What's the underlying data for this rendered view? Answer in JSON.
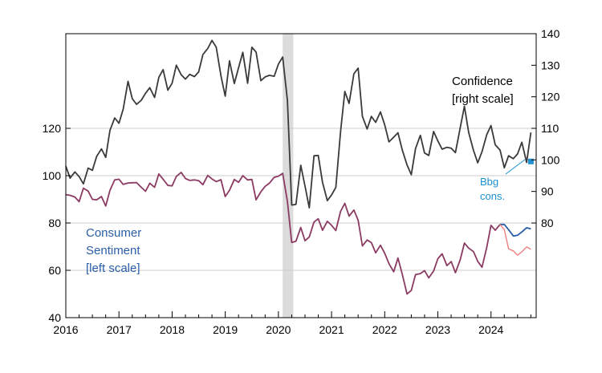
{
  "chart_data": {
    "type": "line",
    "x_ticks": [
      "2016",
      "2017",
      "2018",
      "2019",
      "2020",
      "2021",
      "2022",
      "2023",
      "2024"
    ],
    "x_range": [
      2016.0,
      2024.85
    ],
    "left_axis": {
      "range": [
        40,
        160
      ],
      "ticks": [
        "40",
        "60",
        "80",
        "100",
        "120"
      ]
    },
    "right_axis": {
      "range": [
        50,
        140
      ],
      "ticks": [
        "80",
        "90",
        "100",
        "110",
        "120",
        "130",
        "140"
      ]
    },
    "recession_shade": [
      2020.08,
      2020.28
    ],
    "grid": "horizontal",
    "annotations": {
      "confidence_line1": "Confidence",
      "confidence_line2": "[right scale]",
      "sentiment_line1": "Consumer",
      "sentiment_line2": "Sentiment",
      "sentiment_line3": "[left scale]",
      "bbg_line1": "Bbg",
      "bbg_line2": "cons."
    },
    "colors": {
      "confidence": "#3a3a3a",
      "sentiment_final": "#8b3a62",
      "sentiment_revised": "#2a5ea8",
      "sentiment_prelim": "#f08080",
      "bbg_consensus": "#1e8fd0",
      "recession": "#dcdcdc",
      "gridline": "#cccccc",
      "sentiment_label": "#2a5ea8",
      "bbg_label": "#1e8fd0"
    },
    "series": [
      {
        "axis": "right",
        "x": [
          2016.0,
          2016.08,
          2016.17,
          2016.25,
          2016.33,
          2016.42,
          2016.5,
          2016.58,
          2016.67,
          2016.75,
          2016.83,
          2016.92,
          2017.0,
          2017.08,
          2017.17,
          2017.25,
          2017.33,
          2017.42,
          2017.5,
          2017.58,
          2017.67,
          2017.75,
          2017.83,
          2017.92,
          2018.0,
          2018.08,
          2018.17,
          2018.25,
          2018.33,
          2018.42,
          2018.5,
          2018.58,
          2018.67,
          2018.75,
          2018.83,
          2018.92,
          2019.0,
          2019.08,
          2019.17,
          2019.25,
          2019.33,
          2019.42,
          2019.5,
          2019.58,
          2019.67,
          2019.75,
          2019.83,
          2019.92,
          2020.0,
          2020.08,
          2020.17,
          2020.25,
          2020.33,
          2020.42,
          2020.5,
          2020.58,
          2020.67,
          2020.75,
          2020.83,
          2020.92,
          2021.0,
          2021.08,
          2021.17,
          2021.25,
          2021.33,
          2021.42,
          2021.5,
          2021.58,
          2021.67,
          2021.75,
          2021.83,
          2021.92,
          2022.0,
          2022.08,
          2022.17,
          2022.25,
          2022.33,
          2022.42,
          2022.5,
          2022.58,
          2022.67,
          2022.75,
          2022.83,
          2022.92,
          2023.0,
          2023.08,
          2023.17,
          2023.25,
          2023.33,
          2023.42,
          2023.5,
          2023.58,
          2023.67,
          2023.75,
          2023.83,
          2023.92,
          2024.0,
          2024.08,
          2024.17,
          2024.25,
          2024.33,
          2024.42,
          2024.5,
          2024.58,
          2024.67,
          2024.75
        ],
        "values": [
          98,
          94.2,
          96.2,
          94.7,
          92.4,
          97.4,
          96.7,
          101.1,
          103.5,
          100.8,
          109.4,
          113.3,
          111.6,
          116.1,
          124.9,
          119.4,
          117.6,
          118.9,
          121.1,
          122.9,
          119.8,
          126.2,
          128.6,
          122.1,
          124.3,
          130.0,
          127.0,
          125.6,
          127.1,
          126.4,
          127.9,
          133.4,
          135.3,
          137.9,
          135.7,
          126.6,
          120.2,
          131.4,
          124.2,
          129.2,
          134.1,
          124.3,
          135.7,
          134.2,
          125.1,
          126.3,
          126.8,
          126.5,
          130.4,
          132.6,
          118.8,
          85.7,
          85.9,
          98.3,
          91.7,
          84.8,
          101.3,
          101.4,
          92.9,
          87.1,
          88.9,
          91.3,
          109.0,
          121.7,
          117.9,
          127.3,
          129.1,
          113.8,
          109.8,
          113.8,
          111.9,
          115.2,
          111.1,
          105.7,
          107.2,
          108.6,
          103.2,
          98.4,
          95.3,
          103.6,
          107.8,
          102.2,
          101.4,
          109.0,
          106.0,
          103.4,
          104.0,
          103.7,
          102.3,
          110.1,
          117.0,
          108.7,
          103.0,
          99.1,
          102.6,
          108.0,
          110.9,
          104.8,
          103.1,
          97.5,
          101.3,
          100.4,
          101.9,
          105.6,
          99.2,
          108.7
        ]
      },
      {
        "axis": "left",
        "x": [
          2016.0,
          2016.08,
          2016.17,
          2016.25,
          2016.33,
          2016.42,
          2016.5,
          2016.58,
          2016.67,
          2016.75,
          2016.83,
          2016.92,
          2017.0,
          2017.08,
          2017.17,
          2017.25,
          2017.33,
          2017.42,
          2017.5,
          2017.58,
          2017.67,
          2017.75,
          2017.83,
          2017.92,
          2018.0,
          2018.08,
          2018.17,
          2018.25,
          2018.33,
          2018.42,
          2018.5,
          2018.58,
          2018.67,
          2018.75,
          2018.83,
          2018.92,
          2019.0,
          2019.08,
          2019.17,
          2019.25,
          2019.33,
          2019.42,
          2019.5,
          2019.58,
          2019.67,
          2019.75,
          2019.83,
          2019.92,
          2020.0,
          2020.08,
          2020.17,
          2020.25,
          2020.33,
          2020.42,
          2020.5,
          2020.58,
          2020.67,
          2020.75,
          2020.83,
          2020.92,
          2021.0,
          2021.08,
          2021.17,
          2021.25,
          2021.33,
          2021.42,
          2021.5,
          2021.58,
          2021.67,
          2021.75,
          2021.83,
          2021.92,
          2022.0,
          2022.08,
          2022.17,
          2022.25,
          2022.33,
          2022.42,
          2022.5,
          2022.58,
          2022.67,
          2022.75,
          2022.83,
          2022.92,
          2023.0,
          2023.08,
          2023.17,
          2023.25,
          2023.33,
          2023.42,
          2023.5,
          2023.58,
          2023.67,
          2023.75,
          2023.83,
          2023.92,
          2024.0,
          2024.08,
          2024.17
        ],
        "values": [
          92.0,
          91.7,
          91.0,
          89.0,
          94.7,
          93.5,
          90.0,
          89.8,
          91.2,
          87.2,
          93.8,
          98.2,
          98.5,
          96.3,
          96.9,
          97.0,
          97.1,
          95.1,
          93.4,
          96.8,
          95.1,
          100.7,
          98.5,
          95.9,
          95.7,
          99.7,
          101.4,
          98.8,
          98.0,
          98.2,
          97.9,
          96.2,
          100.1,
          98.6,
          97.5,
          98.3,
          91.2,
          93.8,
          98.4,
          97.2,
          100.0,
          98.2,
          98.4,
          89.8,
          93.2,
          95.5,
          96.8,
          99.3,
          99.8,
          101.0,
          89.1,
          71.8,
          72.3,
          78.1,
          72.5,
          74.1,
          80.4,
          81.8,
          76.9,
          80.7,
          79.0,
          76.8,
          84.9,
          88.3,
          82.9,
          85.5,
          81.2,
          70.3,
          72.8,
          71.7,
          67.4,
          70.6,
          67.2,
          62.8,
          59.4,
          65.2,
          58.4,
          50.0,
          51.5,
          58.2,
          58.6,
          59.9,
          56.8,
          59.7,
          64.9,
          67.0,
          62.0,
          63.7,
          59.0,
          64.4,
          71.5,
          69.4,
          67.9,
          63.8,
          61.3,
          69.7,
          79.0,
          76.9,
          79.4
        ]
      },
      {
        "axis": "left",
        "x": [
          2024.17,
          2024.25,
          2024.33,
          2024.42,
          2024.5,
          2024.58,
          2024.67,
          2024.75
        ],
        "values": [
          79.4,
          79.4,
          77.2,
          74.5,
          74.8,
          76.2,
          78.0,
          77.5
        ]
      },
      {
        "axis": "left",
        "x": [
          2024.17,
          2024.25,
          2024.33,
          2024.42,
          2024.5,
          2024.58,
          2024.67,
          2024.75
        ],
        "values": [
          79.4,
          77.2,
          69.1,
          68.2,
          66.4,
          67.8,
          69.9,
          68.9
        ]
      },
      {
        "axis": "right",
        "x": [
          2024.75
        ],
        "values": [
          99.5
        ]
      }
    ]
  }
}
